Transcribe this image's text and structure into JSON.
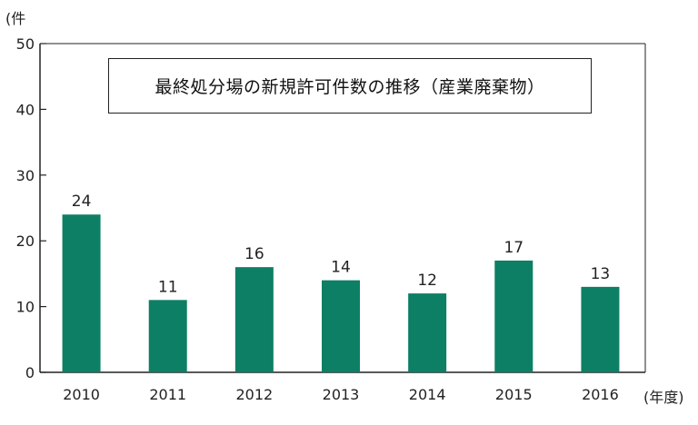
{
  "chart_data": {
    "type": "bar",
    "title": "最終処分場の新規許可件数の推移（産業廃棄物）",
    "ylabel": "(件",
    "xlabel": "(年度)",
    "categories": [
      "2010",
      "2011",
      "2012",
      "2013",
      "2014",
      "2015",
      "2016"
    ],
    "values": [
      24,
      11,
      16,
      14,
      12,
      17,
      13
    ],
    "ylim": [
      0,
      50
    ],
    "yticks": [
      0,
      10,
      20,
      30,
      40,
      50
    ],
    "grid": false,
    "bar_color": "#0d7f64",
    "axis_color": "#222222"
  }
}
